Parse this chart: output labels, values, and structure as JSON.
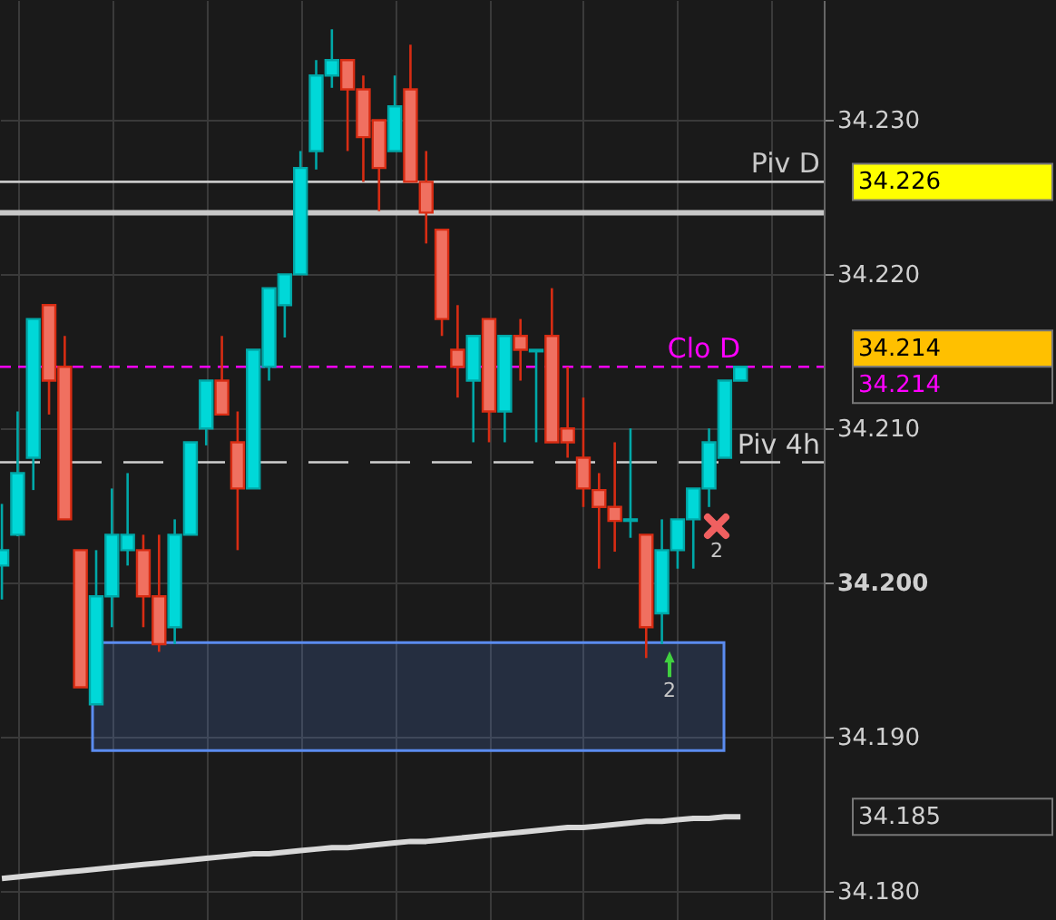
{
  "chart_data": {
    "type": "candlestick",
    "categories": [
      null,
      null,
      null,
      null,
      null,
      null,
      null,
      null,
      null,
      null,
      null,
      null,
      null,
      null,
      null,
      null,
      null,
      null,
      null,
      null,
      null,
      null,
      null,
      null,
      null,
      null,
      null,
      null,
      null,
      null,
      null,
      null,
      null,
      null,
      null,
      null,
      null,
      null,
      null,
      null,
      null,
      null,
      null,
      null,
      null,
      null,
      null,
      null
    ],
    "ohlc": [
      [
        34.2011,
        34.2051,
        34.1989,
        34.2021
      ],
      [
        34.2031,
        34.2111,
        34.203,
        34.2071
      ],
      [
        34.2081,
        34.2171,
        34.206,
        34.2171
      ],
      [
        34.218,
        34.218,
        34.2109,
        34.2131
      ],
      [
        34.214,
        34.216,
        34.2041,
        34.2041
      ],
      [
        34.2021,
        34.2021,
        34.1932,
        34.1932
      ],
      [
        34.1921,
        34.2021,
        34.1921,
        34.1991
      ],
      [
        34.1991,
        34.2061,
        34.1971,
        34.2031
      ],
      [
        34.2021,
        34.2071,
        34.2011,
        34.2031
      ],
      [
        34.2021,
        34.2031,
        34.1971,
        34.1991
      ],
      [
        34.1991,
        34.2031,
        34.1955,
        34.196
      ],
      [
        34.1971,
        34.2041,
        34.196,
        34.2031
      ],
      [
        34.2031,
        34.2091,
        34.2031,
        34.2091
      ],
      [
        34.21,
        34.2131,
        34.2089,
        34.2131
      ],
      [
        34.2131,
        34.216,
        34.2109,
        34.2109
      ],
      [
        34.2091,
        34.2111,
        34.2021,
        34.2061
      ],
      [
        34.2061,
        34.2151,
        34.2061,
        34.2151
      ],
      [
        34.214,
        34.2191,
        34.2131,
        34.2191
      ],
      [
        34.218,
        34.22,
        34.2159,
        34.22
      ],
      [
        34.22,
        34.228,
        34.22,
        34.2269
      ],
      [
        34.228,
        34.2339,
        34.2268,
        34.2329
      ],
      [
        34.2329,
        34.2359,
        34.2321,
        34.2339
      ],
      [
        34.2339,
        34.2339,
        34.228,
        34.232
      ],
      [
        34.232,
        34.2329,
        34.226,
        34.2289
      ],
      [
        34.23,
        34.23,
        34.2241,
        34.2269
      ],
      [
        34.228,
        34.2329,
        34.228,
        34.2309
      ],
      [
        34.232,
        34.2349,
        34.226,
        34.226
      ],
      [
        34.226,
        34.228,
        34.222,
        34.224
      ],
      [
        34.2229,
        34.2229,
        34.216,
        34.2171
      ],
      [
        34.2151,
        34.218,
        34.212,
        34.214
      ],
      [
        34.2131,
        34.216,
        34.2091,
        34.216
      ],
      [
        34.2171,
        34.2171,
        34.2091,
        34.2111
      ],
      [
        34.2111,
        34.216,
        34.2091,
        34.216
      ],
      [
        34.216,
        34.2171,
        34.2131,
        34.2151
      ],
      [
        34.215,
        34.2151,
        34.2091,
        34.2151
      ],
      [
        34.216,
        34.2191,
        34.2091,
        34.2091
      ],
      [
        34.21,
        34.214,
        34.2081,
        34.2091
      ],
      [
        34.2081,
        34.212,
        34.2049,
        34.2061
      ],
      [
        34.206,
        34.2071,
        34.2009,
        34.2049
      ],
      [
        34.2049,
        34.2091,
        34.202,
        34.204
      ],
      [
        34.204,
        34.21,
        34.2029,
        34.2041
      ],
      [
        34.2031,
        34.2031,
        34.1951,
        34.1971
      ],
      [
        34.198,
        34.2041,
        34.196,
        34.2021
      ],
      [
        34.2021,
        34.2041,
        34.2009,
        34.2041
      ],
      [
        34.2041,
        34.2061,
        34.2009,
        34.2061
      ],
      [
        34.2061,
        34.21,
        34.2049,
        34.2091
      ],
      [
        34.2081,
        34.2131,
        34.2081,
        34.2131
      ],
      [
        34.2131,
        34.214,
        34.2131,
        34.214
      ]
    ],
    "colors": [
      "#00d8d8",
      "#00d8d8",
      "#00d8d8",
      "#f07060",
      "#f07060",
      "#f07060",
      "#00d8d8",
      "#00d8d8",
      "#00d8d8",
      "#f07060",
      "#f07060",
      "#00d8d8",
      "#00d8d8",
      "#00d8d8",
      "#f07060",
      "#f07060",
      "#00d8d8",
      "#00d8d8",
      "#00d8d8",
      "#00d8d8",
      "#00d8d8",
      "#00d8d8",
      "#f07060",
      "#f07060",
      "#f07060",
      "#00d8d8",
      "#f07060",
      "#f07060",
      "#f07060",
      "#f07060",
      "#00d8d8",
      "#f07060",
      "#00d8d8",
      "#f07060",
      "#00d8d8",
      "#f07060",
      "#f07060",
      "#f07060",
      "#f07060",
      "#f07060",
      "#00d8d8",
      "#f07060",
      "#00d8d8",
      "#00d8d8",
      "#00d8d8",
      "#00d8d8",
      "#00d8d8",
      "#00d8d8"
    ],
    "series": [
      {
        "type": "line",
        "color": "#d8d8d8",
        "values": [
          34.1808,
          34.1809,
          34.181,
          34.1811,
          34.1812,
          34.1813,
          34.1814,
          34.1815,
          34.1816,
          34.1817,
          34.1818,
          34.1819,
          34.182,
          34.1821,
          34.1822,
          34.1823,
          34.1824,
          34.1824,
          34.1825,
          34.1826,
          34.1827,
          34.1828,
          34.1828,
          34.1829,
          34.183,
          34.1831,
          34.1832,
          34.1832,
          34.1833,
          34.1834,
          34.1835,
          34.1836,
          34.1837,
          34.1838,
          34.1839,
          34.184,
          34.1841,
          34.1841,
          34.1842,
          34.1843,
          34.1844,
          34.1845,
          34.1845,
          34.1846,
          34.1847,
          34.1847,
          34.1848,
          34.1848
        ]
      }
    ],
    "ylim": [
      34.1781,
      34.2378
    ],
    "yticks": [
      {
        "value": 34.18,
        "label": "34.180"
      },
      {
        "value": 34.19,
        "label": "34.190"
      },
      {
        "value": 34.2,
        "label": "34.200"
      },
      {
        "value": 34.21,
        "label": "34.210"
      },
      {
        "value": 34.22,
        "label": "34.220"
      },
      {
        "value": 34.23,
        "label": "34.230"
      }
    ],
    "tick_labels": "y",
    "grid": true,
    "ref_lines": [
      {
        "axis": "y",
        "value": 34.226,
        "label": "Piv D",
        "color": "#c8c8c8",
        "line_style": "solid"
      },
      {
        "axis": "y",
        "value": 34.224,
        "color": "#c8c8c8",
        "line_style": "solid"
      },
      {
        "axis": "y",
        "value": 34.214,
        "label": "Clo D",
        "color": "#ff00ff",
        "line_style": "dashed"
      },
      {
        "axis": "y",
        "value": 34.2078,
        "label": "Piv 4h",
        "color": "#d0d0d0",
        "line_style": "dashed"
      }
    ],
    "bands": [
      {
        "axis": "y",
        "from": 34.1891,
        "to": 34.1961,
        "color": "#5b8cf0"
      }
    ],
    "annotations": [
      "2",
      "2",
      "34.226",
      "34.214",
      "34.214",
      "34.185"
    ]
  }
}
